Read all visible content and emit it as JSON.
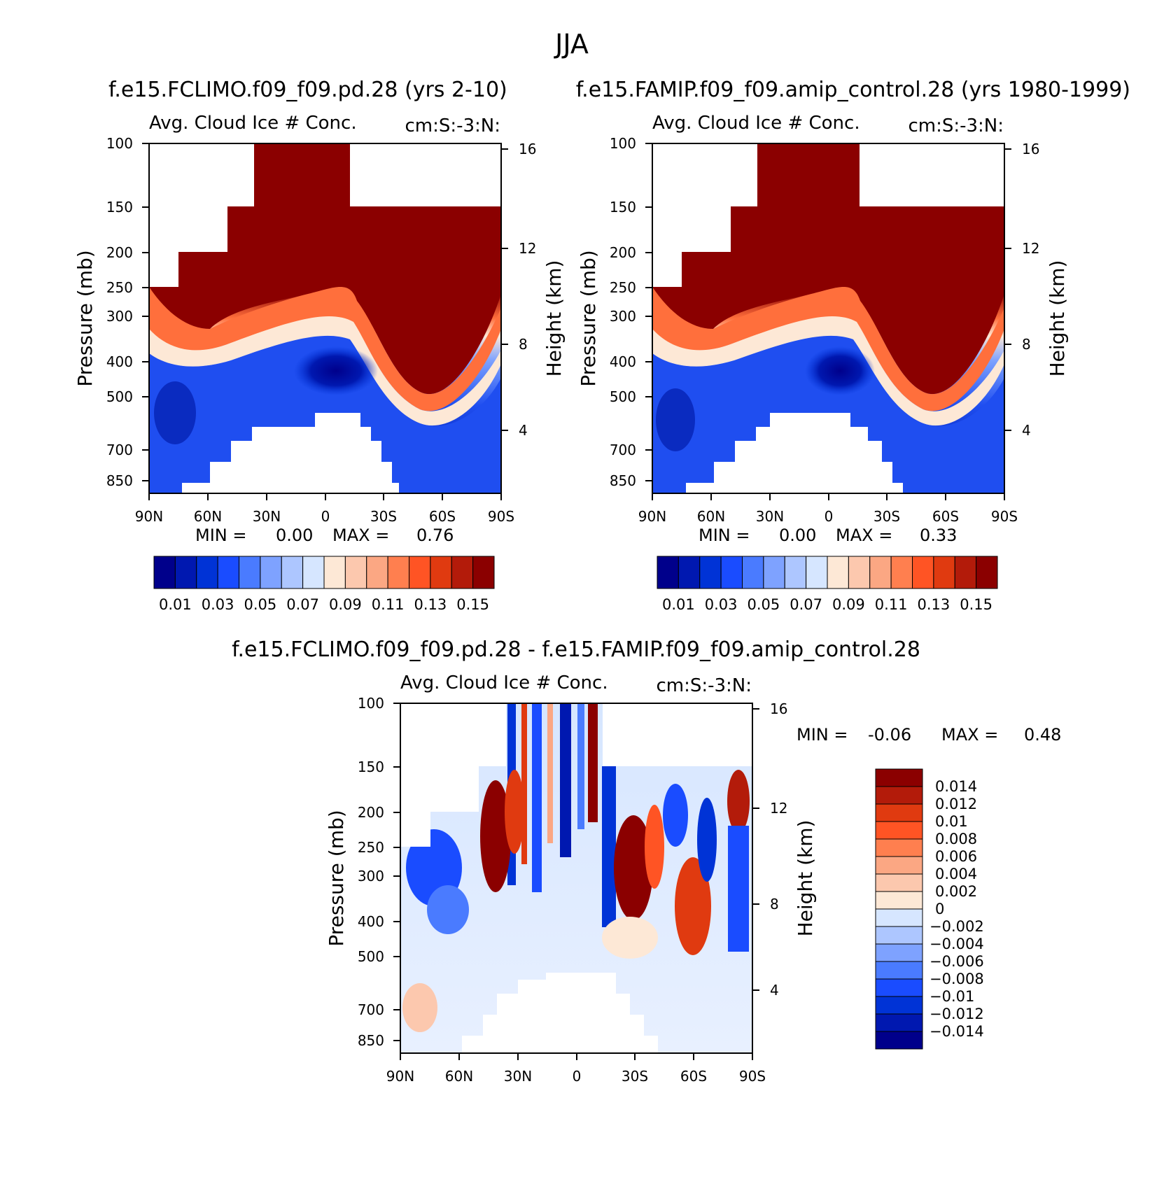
{
  "figure": {
    "title": "JJA",
    "colors": {
      "white": "#ffffff",
      "darkred": "#8b0000",
      "red": "#e03a1a",
      "orange": "#ff6f3c",
      "peach": "#fdbf9f",
      "cream": "#fde8d6",
      "lightblue": "#cfe2fb",
      "blue": "#5b88ff",
      "midblue": "#1f4ef0",
      "darkblue": "#0a1f9a"
    }
  },
  "chart_data": [
    {
      "id": "panel-a",
      "type": "heatmap",
      "title": "f.e15.FCLIMO.f09_f09.pd.28 (yrs 2-10)",
      "subtitle": "Avg. Cloud Ice # Conc.",
      "units": "cm:S:-3:N:",
      "xlabel": "",
      "ylabel": "Pressure (mb)",
      "y2label": "Height (km)",
      "x_ticks": [
        "90N",
        "60N",
        "30N",
        "0",
        "30S",
        "60S",
        "90S"
      ],
      "x_range": [
        90,
        -90
      ],
      "y_ticks": [
        100,
        150,
        200,
        250,
        300,
        400,
        500,
        700,
        850
      ],
      "y_range": [
        100,
        1000
      ],
      "height_ticks": [
        16,
        12,
        8,
        4
      ],
      "min_label": "MIN =",
      "min_value": "0.00",
      "max_label": "MAX =",
      "max_value": "0.76",
      "colorbar": {
        "orientation": "horizontal",
        "levels": [
          0.01,
          0.02,
          0.03,
          0.04,
          0.05,
          0.06,
          0.07,
          0.08,
          0.09,
          0.1,
          0.11,
          0.12,
          0.13,
          0.14,
          0.15
        ],
        "tick_labels": [
          "0.01",
          "0.03",
          "0.05",
          "0.07",
          "0.09",
          "0.11",
          "0.13",
          "0.15"
        ],
        "colors": [
          "#00008b",
          "#0018b0",
          "#0033d6",
          "#1a4cff",
          "#4a7bff",
          "#7ea2ff",
          "#adc6ff",
          "#d6e6ff",
          "#fde8d6",
          "#fcc8ae",
          "#fba783",
          "#ff7f4f",
          "#ff5424",
          "#e03a10",
          "#b31b0a",
          "#8b0000"
        ]
      }
    },
    {
      "id": "panel-b",
      "type": "heatmap",
      "title": "f.e15.FAMIP.f09_f09.amip_control.28 (yrs 1980-1999)",
      "subtitle": "Avg. Cloud Ice # Conc.",
      "units": "cm:S:-3:N:",
      "xlabel": "",
      "ylabel": "Pressure (mb)",
      "y2label": "Height (km)",
      "x_ticks": [
        "90N",
        "60N",
        "30N",
        "0",
        "30S",
        "60S",
        "90S"
      ],
      "x_range": [
        90,
        -90
      ],
      "y_ticks": [
        100,
        150,
        200,
        250,
        300,
        400,
        500,
        700,
        850
      ],
      "y_range": [
        100,
        1000
      ],
      "height_ticks": [
        16,
        12,
        8,
        4
      ],
      "min_label": "MIN =",
      "min_value": "0.00",
      "max_label": "MAX =",
      "max_value": "0.33",
      "colorbar": {
        "orientation": "horizontal",
        "levels": [
          0.01,
          0.02,
          0.03,
          0.04,
          0.05,
          0.06,
          0.07,
          0.08,
          0.09,
          0.1,
          0.11,
          0.12,
          0.13,
          0.14,
          0.15
        ],
        "tick_labels": [
          "0.01",
          "0.03",
          "0.05",
          "0.07",
          "0.09",
          "0.11",
          "0.13",
          "0.15"
        ],
        "colors": [
          "#00008b",
          "#0018b0",
          "#0033d6",
          "#1a4cff",
          "#4a7bff",
          "#7ea2ff",
          "#adc6ff",
          "#d6e6ff",
          "#fde8d6",
          "#fcc8ae",
          "#fba783",
          "#ff7f4f",
          "#ff5424",
          "#e03a10",
          "#b31b0a",
          "#8b0000"
        ]
      }
    },
    {
      "id": "panel-diff",
      "type": "heatmap",
      "title": "f.e15.FCLIMO.f09_f09.pd.28 - f.e15.FAMIP.f09_f09.amip_control.28",
      "subtitle": "Avg. Cloud Ice # Conc.",
      "units": "cm:S:-3:N:",
      "xlabel": "",
      "ylabel": "Pressure (mb)",
      "y2label": "Height (km)",
      "x_ticks": [
        "90N",
        "60N",
        "30N",
        "0",
        "30S",
        "60S",
        "90S"
      ],
      "x_range": [
        90,
        -90
      ],
      "y_ticks": [
        100,
        150,
        200,
        250,
        300,
        400,
        500,
        700,
        850
      ],
      "y_range": [
        100,
        1000
      ],
      "height_ticks": [
        16,
        12,
        8,
        4
      ],
      "min_label": "MIN =",
      "min_value": "-0.06",
      "max_label": "MAX =",
      "max_value": "0.48",
      "colorbar": {
        "orientation": "vertical",
        "levels": [
          -0.014,
          -0.012,
          -0.01,
          -0.008,
          -0.006,
          -0.004,
          -0.002,
          0,
          0.002,
          0.004,
          0.006,
          0.008,
          0.01,
          0.012,
          0.014
        ],
        "tick_labels": [
          "0.014",
          "0.012",
          "0.01",
          "0.008",
          "0.006",
          "0.004",
          "0.002",
          "0",
          "-0.002",
          "-0.004",
          "-0.006",
          "-0.008",
          "-0.01",
          "-0.012",
          "-0.014"
        ],
        "colors": [
          "#8b0000",
          "#b31b0a",
          "#e03a10",
          "#ff5424",
          "#ff7f4f",
          "#fba783",
          "#fcc8ae",
          "#fde8d6",
          "#d6e6ff",
          "#adc6ff",
          "#7ea2ff",
          "#4a7bff",
          "#1a4cff",
          "#0033d6",
          "#0018b0",
          "#00008b"
        ]
      }
    }
  ]
}
